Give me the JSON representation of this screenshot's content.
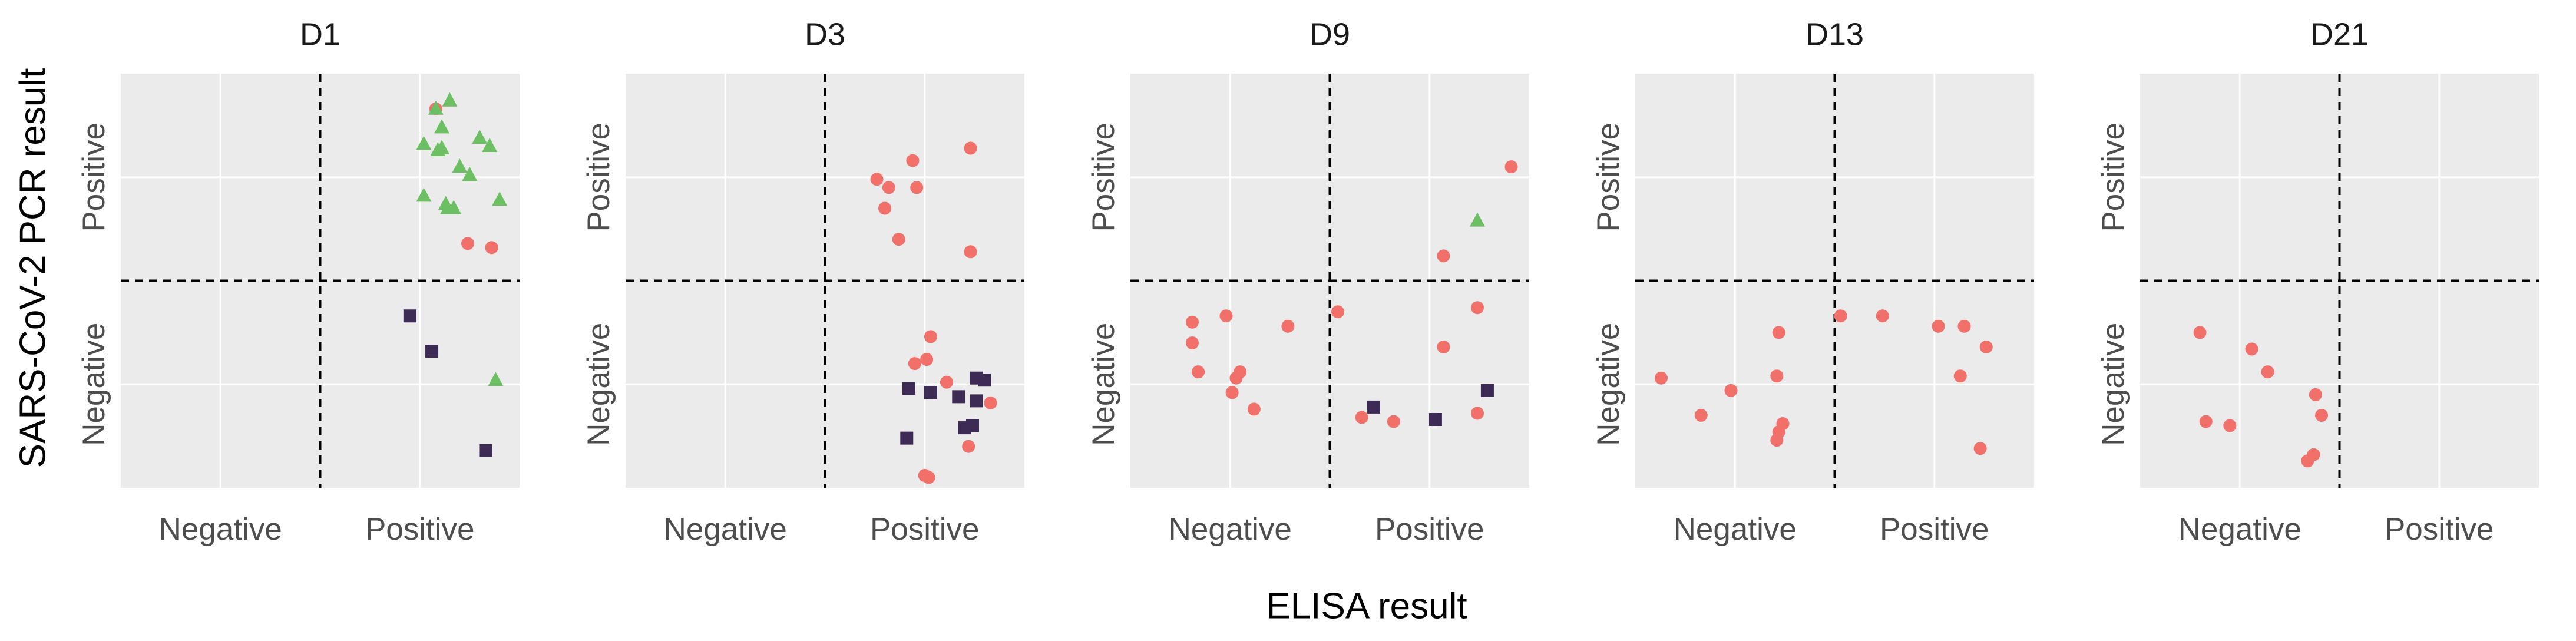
{
  "chart_data": {
    "type": "scatter",
    "xlabel": "ELISA result",
    "ylabel": "SARS-CoV-2 PCR result",
    "x_categories": [
      "Negative",
      "Positive"
    ],
    "y_categories": [
      "Negative",
      "Positive"
    ],
    "category_centers": [
      1,
      2
    ],
    "axis_range": [
      0.5,
      2.5
    ],
    "grid": true,
    "legend": "none",
    "colors": {
      "panel_bg": "#ebebeb",
      "grid": "#ffffff",
      "circle": "#f2706a",
      "triangle": "#6dbf63",
      "square": "#3d2b56"
    },
    "panels": [
      {
        "title": "D1",
        "points": [
          {
            "x": 2.08,
            "y": 2.33,
            "shape": "circle"
          },
          {
            "x": 2.24,
            "y": 1.68,
            "shape": "circle"
          },
          {
            "x": 2.36,
            "y": 1.66,
            "shape": "circle"
          },
          {
            "x": 2.08,
            "y": 2.33,
            "shape": "triangle"
          },
          {
            "x": 2.15,
            "y": 2.37,
            "shape": "triangle"
          },
          {
            "x": 2.11,
            "y": 2.24,
            "shape": "triangle"
          },
          {
            "x": 2.11,
            "y": 2.14,
            "shape": "triangle"
          },
          {
            "x": 2.09,
            "y": 2.13,
            "shape": "triangle"
          },
          {
            "x": 2.02,
            "y": 2.16,
            "shape": "triangle"
          },
          {
            "x": 2.02,
            "y": 1.91,
            "shape": "triangle"
          },
          {
            "x": 2.13,
            "y": 1.87,
            "shape": "triangle"
          },
          {
            "x": 2.14,
            "y": 1.85,
            "shape": "triangle"
          },
          {
            "x": 2.17,
            "y": 1.85,
            "shape": "triangle"
          },
          {
            "x": 2.2,
            "y": 2.05,
            "shape": "triangle"
          },
          {
            "x": 2.25,
            "y": 2.01,
            "shape": "triangle"
          },
          {
            "x": 2.3,
            "y": 2.19,
            "shape": "triangle"
          },
          {
            "x": 2.35,
            "y": 2.15,
            "shape": "triangle"
          },
          {
            "x": 2.4,
            "y": 1.89,
            "shape": "triangle"
          },
          {
            "x": 2.38,
            "y": 1.02,
            "shape": "triangle"
          },
          {
            "x": 1.95,
            "y": 1.33,
            "shape": "square"
          },
          {
            "x": 2.06,
            "y": 1.16,
            "shape": "square"
          },
          {
            "x": 2.33,
            "y": 0.68,
            "shape": "square"
          }
        ]
      },
      {
        "title": "D3",
        "points": [
          {
            "x": 1.76,
            "y": 1.99,
            "shape": "circle"
          },
          {
            "x": 1.8,
            "y": 1.85,
            "shape": "circle"
          },
          {
            "x": 1.82,
            "y": 1.95,
            "shape": "circle"
          },
          {
            "x": 1.87,
            "y": 1.7,
            "shape": "circle"
          },
          {
            "x": 1.96,
            "y": 1.95,
            "shape": "circle"
          },
          {
            "x": 1.94,
            "y": 2.08,
            "shape": "circle"
          },
          {
            "x": 2.23,
            "y": 2.14,
            "shape": "circle"
          },
          {
            "x": 2.23,
            "y": 1.64,
            "shape": "circle"
          },
          {
            "x": 2.03,
            "y": 1.23,
            "shape": "circle"
          },
          {
            "x": 2.11,
            "y": 1.01,
            "shape": "circle"
          },
          {
            "x": 2.01,
            "y": 1.12,
            "shape": "circle"
          },
          {
            "x": 1.95,
            "y": 1.1,
            "shape": "circle"
          },
          {
            "x": 2.33,
            "y": 0.91,
            "shape": "circle"
          },
          {
            "x": 2.22,
            "y": 0.7,
            "shape": "circle"
          },
          {
            "x": 2.0,
            "y": 0.56,
            "shape": "circle"
          },
          {
            "x": 2.02,
            "y": 0.55,
            "shape": "circle"
          },
          {
            "x": 2.26,
            "y": 1.03,
            "shape": "square"
          },
          {
            "x": 2.3,
            "y": 1.02,
            "shape": "square"
          },
          {
            "x": 1.92,
            "y": 0.98,
            "shape": "square"
          },
          {
            "x": 2.03,
            "y": 0.96,
            "shape": "square"
          },
          {
            "x": 2.17,
            "y": 0.94,
            "shape": "square"
          },
          {
            "x": 2.26,
            "y": 0.92,
            "shape": "square"
          },
          {
            "x": 2.2,
            "y": 0.79,
            "shape": "square"
          },
          {
            "x": 2.24,
            "y": 0.8,
            "shape": "square"
          },
          {
            "x": 1.91,
            "y": 0.74,
            "shape": "square"
          }
        ]
      },
      {
        "title": "D9",
        "points": [
          {
            "x": 0.81,
            "y": 1.3,
            "shape": "circle"
          },
          {
            "x": 0.81,
            "y": 1.2,
            "shape": "circle"
          },
          {
            "x": 0.84,
            "y": 1.06,
            "shape": "circle"
          },
          {
            "x": 0.98,
            "y": 1.33,
            "shape": "circle"
          },
          {
            "x": 1.29,
            "y": 1.28,
            "shape": "circle"
          },
          {
            "x": 1.03,
            "y": 1.03,
            "shape": "circle"
          },
          {
            "x": 1.05,
            "y": 1.06,
            "shape": "circle"
          },
          {
            "x": 1.01,
            "y": 0.96,
            "shape": "circle"
          },
          {
            "x": 1.12,
            "y": 0.88,
            "shape": "circle"
          },
          {
            "x": 1.54,
            "y": 1.35,
            "shape": "circle"
          },
          {
            "x": 1.66,
            "y": 0.84,
            "shape": "circle"
          },
          {
            "x": 1.82,
            "y": 0.82,
            "shape": "circle"
          },
          {
            "x": 2.07,
            "y": 1.62,
            "shape": "circle"
          },
          {
            "x": 2.07,
            "y": 1.18,
            "shape": "circle"
          },
          {
            "x": 2.24,
            "y": 1.37,
            "shape": "circle"
          },
          {
            "x": 2.24,
            "y": 0.86,
            "shape": "circle"
          },
          {
            "x": 2.41,
            "y": 2.05,
            "shape": "circle"
          },
          {
            "x": 2.24,
            "y": 1.79,
            "shape": "triangle"
          },
          {
            "x": 1.72,
            "y": 0.89,
            "shape": "square"
          },
          {
            "x": 2.03,
            "y": 0.83,
            "shape": "square"
          },
          {
            "x": 2.29,
            "y": 0.97,
            "shape": "square"
          }
        ]
      },
      {
        "title": "D13",
        "points": [
          {
            "x": 0.63,
            "y": 1.03,
            "shape": "circle"
          },
          {
            "x": 0.83,
            "y": 0.85,
            "shape": "circle"
          },
          {
            "x": 0.98,
            "y": 0.97,
            "shape": "circle"
          },
          {
            "x": 1.22,
            "y": 1.25,
            "shape": "circle"
          },
          {
            "x": 1.21,
            "y": 1.04,
            "shape": "circle"
          },
          {
            "x": 1.24,
            "y": 0.81,
            "shape": "circle"
          },
          {
            "x": 1.22,
            "y": 0.77,
            "shape": "circle"
          },
          {
            "x": 1.21,
            "y": 0.73,
            "shape": "circle"
          },
          {
            "x": 1.53,
            "y": 1.33,
            "shape": "circle"
          },
          {
            "x": 1.74,
            "y": 1.33,
            "shape": "circle"
          },
          {
            "x": 2.02,
            "y": 1.28,
            "shape": "circle"
          },
          {
            "x": 2.15,
            "y": 1.28,
            "shape": "circle"
          },
          {
            "x": 2.26,
            "y": 1.18,
            "shape": "circle"
          },
          {
            "x": 2.13,
            "y": 1.04,
            "shape": "circle"
          },
          {
            "x": 2.23,
            "y": 0.69,
            "shape": "circle"
          }
        ]
      },
      {
        "title": "D21",
        "points": [
          {
            "x": 0.8,
            "y": 1.25,
            "shape": "circle"
          },
          {
            "x": 1.06,
            "y": 1.17,
            "shape": "circle"
          },
          {
            "x": 1.14,
            "y": 1.06,
            "shape": "circle"
          },
          {
            "x": 0.83,
            "y": 0.82,
            "shape": "circle"
          },
          {
            "x": 0.95,
            "y": 0.8,
            "shape": "circle"
          },
          {
            "x": 1.38,
            "y": 0.95,
            "shape": "circle"
          },
          {
            "x": 1.41,
            "y": 0.85,
            "shape": "circle"
          },
          {
            "x": 1.37,
            "y": 0.66,
            "shape": "circle"
          },
          {
            "x": 1.34,
            "y": 0.63,
            "shape": "circle"
          }
        ]
      }
    ]
  }
}
